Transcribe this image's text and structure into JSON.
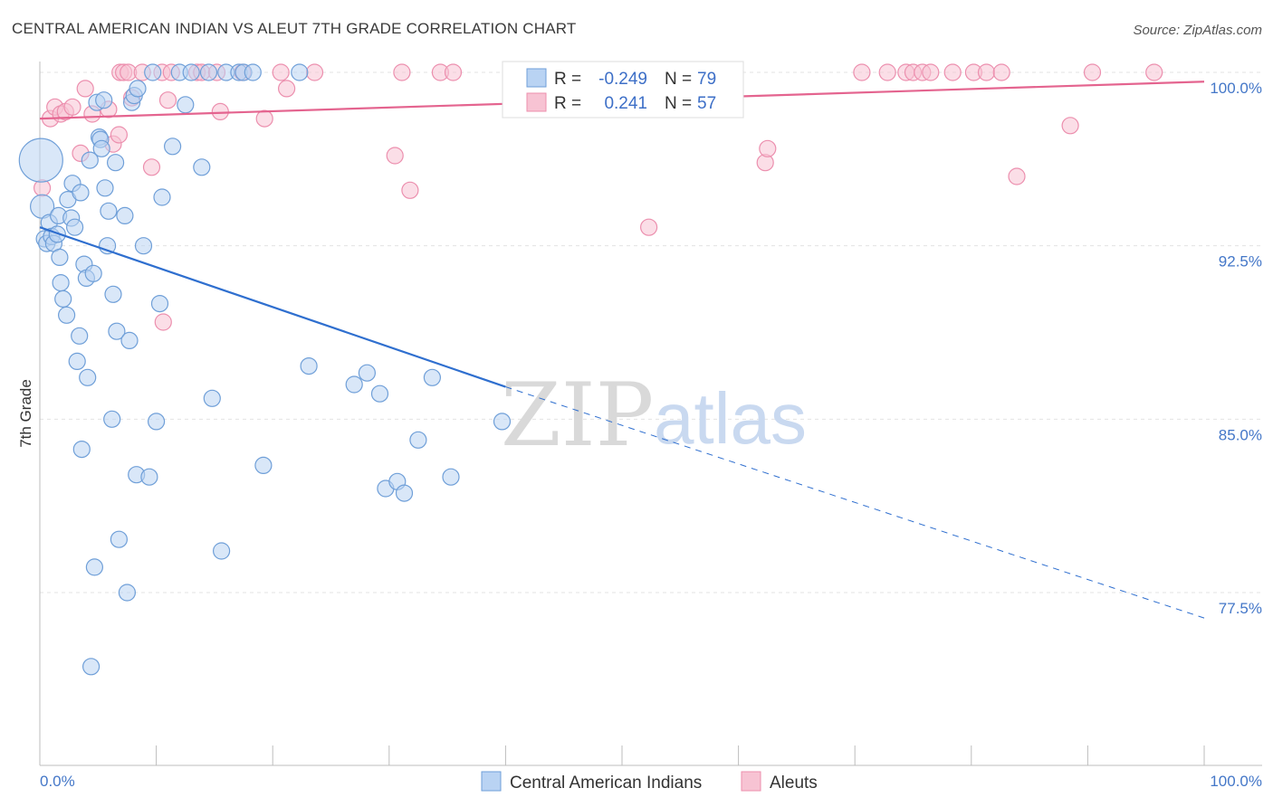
{
  "header": {
    "title": "CENTRAL AMERICAN INDIAN VS ALEUT 7TH GRADE CORRELATION CHART",
    "source": "Source: ZipAtlas.com"
  },
  "watermark": {
    "zip": "ZIP",
    "atlas": "atlas"
  },
  "colors": {
    "blue_fill": "#b9d3f3",
    "blue_stroke": "#6f9fd8",
    "blue_line": "#2f6fcf",
    "pink_fill": "#f7c3d3",
    "pink_stroke": "#ec8fae",
    "pink_line": "#e4648f",
    "grid": "#e3e3e3",
    "axis": "#bdbdbd"
  },
  "legend_box": {
    "rows": [
      {
        "r_label": "R =",
        "r_value": "-0.249",
        "n_label": "N =",
        "n_value": "79",
        "series": "blue"
      },
      {
        "r_label": "R =",
        "r_value": "0.241",
        "n_label": "N =",
        "n_value": "57",
        "series": "pink"
      }
    ]
  },
  "chart_data": {
    "type": "scatter",
    "title": "CENTRAL AMERICAN INDIAN VS ALEUT 7TH GRADE CORRELATION CHART",
    "xlabel": "",
    "ylabel": "7th Grade",
    "xlim": [
      0,
      100
    ],
    "ylim": [
      70.9,
      101.0
    ],
    "x_edge_labels": [
      "0.0%",
      "100.0%"
    ],
    "y_ticks": [
      {
        "value": 100.0,
        "label": "100.0%"
      },
      {
        "value": 92.5,
        "label": "92.5%"
      },
      {
        "value": 85.0,
        "label": "85.0%"
      },
      {
        "value": 77.5,
        "label": "77.5%"
      }
    ],
    "x_minor_ticks": [
      10,
      20,
      30,
      40,
      50,
      60,
      70,
      80,
      90,
      100
    ],
    "legend": [
      "Central American Indians",
      "Aleuts"
    ],
    "series": [
      {
        "name": "Central American Indians",
        "color": "blue",
        "r": -0.249,
        "n": 79,
        "trend": {
          "x0": 0,
          "y0": 93.3,
          "x_solid_end": 40,
          "y_solid_end": 86.4,
          "x1": 100,
          "y1": 76.4
        },
        "points": [
          [
            0.1,
            96.2,
            3
          ],
          [
            0.2,
            94.2,
            2
          ],
          [
            0.4,
            92.8,
            1
          ],
          [
            0.6,
            92.6,
            1
          ],
          [
            0.8,
            93.5,
            1
          ],
          [
            1.0,
            92.9,
            1
          ],
          [
            1.2,
            92.6,
            1
          ],
          [
            1.5,
            93.0,
            1
          ],
          [
            1.6,
            93.8,
            1
          ],
          [
            1.7,
            92.0,
            1
          ],
          [
            1.8,
            90.9,
            1
          ],
          [
            2.0,
            90.2,
            1
          ],
          [
            2.3,
            89.5,
            1
          ],
          [
            2.4,
            94.5,
            1
          ],
          [
            2.7,
            93.7,
            1
          ],
          [
            2.8,
            95.2,
            1
          ],
          [
            3.0,
            93.3,
            1
          ],
          [
            3.2,
            87.5,
            1
          ],
          [
            3.4,
            88.6,
            1
          ],
          [
            3.5,
            94.8,
            1
          ],
          [
            3.6,
            83.7,
            1
          ],
          [
            3.8,
            91.7,
            1
          ],
          [
            4.0,
            91.1,
            1
          ],
          [
            4.1,
            86.8,
            1
          ],
          [
            4.3,
            96.2,
            1
          ],
          [
            4.6,
            91.3,
            1
          ],
          [
            4.7,
            78.6,
            1
          ],
          [
            4.9,
            98.7,
            1
          ],
          [
            5.1,
            97.2,
            1
          ],
          [
            5.2,
            97.1,
            1
          ],
          [
            5.3,
            96.7,
            1
          ],
          [
            5.5,
            98.8,
            1
          ],
          [
            5.6,
            95.0,
            1
          ],
          [
            5.8,
            92.5,
            1
          ],
          [
            5.9,
            94.0,
            1
          ],
          [
            6.2,
            85.0,
            1
          ],
          [
            6.3,
            90.4,
            1
          ],
          [
            6.5,
            96.1,
            1
          ],
          [
            6.6,
            88.8,
            1
          ],
          [
            6.8,
            79.8,
            1
          ],
          [
            7.3,
            93.8,
            1
          ],
          [
            7.5,
            77.5,
            1
          ],
          [
            7.7,
            88.4,
            1
          ],
          [
            7.9,
            98.7,
            1
          ],
          [
            8.1,
            99.0,
            1
          ],
          [
            8.3,
            82.6,
            1
          ],
          [
            8.4,
            99.3,
            1
          ],
          [
            8.9,
            92.5,
            1
          ],
          [
            9.4,
            82.5,
            1
          ],
          [
            9.7,
            100.0,
            1
          ],
          [
            10.0,
            84.9,
            1
          ],
          [
            10.3,
            90.0,
            1
          ],
          [
            10.5,
            94.6,
            1
          ],
          [
            11.4,
            96.8,
            1
          ],
          [
            12.0,
            100.0,
            1
          ],
          [
            12.5,
            98.6,
            1
          ],
          [
            13.0,
            100.0,
            1
          ],
          [
            13.9,
            95.9,
            1
          ],
          [
            14.5,
            100.0,
            1
          ],
          [
            14.8,
            85.9,
            1
          ],
          [
            15.6,
            79.3,
            1
          ],
          [
            16.0,
            100.0,
            1
          ],
          [
            17.1,
            100.0,
            1
          ],
          [
            17.5,
            100.0,
            1
          ],
          [
            18.3,
            100.0,
            1
          ],
          [
            19.2,
            83.0,
            1
          ],
          [
            22.3,
            100.0,
            1
          ],
          [
            23.1,
            87.3,
            1
          ],
          [
            27.0,
            86.5,
            1
          ],
          [
            28.1,
            87.0,
            1
          ],
          [
            29.2,
            86.1,
            1
          ],
          [
            29.7,
            82.0,
            1
          ],
          [
            30.7,
            82.3,
            1
          ],
          [
            31.3,
            81.8,
            1
          ],
          [
            32.5,
            84.1,
            1
          ],
          [
            33.7,
            86.8,
            1
          ],
          [
            35.3,
            82.5,
            1
          ],
          [
            39.7,
            84.9,
            1
          ],
          [
            4.4,
            74.3,
            1
          ]
        ]
      },
      {
        "name": "Aleuts",
        "color": "pink",
        "r": 0.241,
        "n": 57,
        "trend": {
          "x0": 0,
          "y0": 98.0,
          "x1": 100,
          "y1": 99.6
        },
        "points": [
          [
            0.2,
            95.0,
            1
          ],
          [
            0.9,
            98.0,
            1
          ],
          [
            1.3,
            98.5,
            1
          ],
          [
            1.8,
            98.2,
            1
          ],
          [
            2.2,
            98.3,
            1
          ],
          [
            2.8,
            98.5,
            1
          ],
          [
            3.5,
            96.5,
            1
          ],
          [
            3.9,
            99.3,
            1
          ],
          [
            4.5,
            98.2,
            1
          ],
          [
            5.9,
            98.4,
            1
          ],
          [
            6.3,
            96.9,
            1
          ],
          [
            6.8,
            97.3,
            1
          ],
          [
            6.9,
            100.0,
            1
          ],
          [
            7.2,
            100.0,
            1
          ],
          [
            7.6,
            100.0,
            1
          ],
          [
            7.9,
            98.9,
            1
          ],
          [
            8.8,
            100.0,
            1
          ],
          [
            9.6,
            95.9,
            1
          ],
          [
            10.5,
            100.0,
            1
          ],
          [
            10.6,
            89.2,
            1
          ],
          [
            11.0,
            98.8,
            1
          ],
          [
            11.3,
            100.0,
            1
          ],
          [
            13.5,
            100.0,
            1
          ],
          [
            13.9,
            100.0,
            1
          ],
          [
            15.2,
            100.0,
            1
          ],
          [
            15.5,
            98.3,
            1
          ],
          [
            17.4,
            100.0,
            1
          ],
          [
            19.3,
            98.0,
            1
          ],
          [
            20.7,
            100.0,
            1
          ],
          [
            21.2,
            99.3,
            1
          ],
          [
            23.6,
            100.0,
            1
          ],
          [
            30.5,
            96.4,
            1
          ],
          [
            31.1,
            100.0,
            1
          ],
          [
            31.8,
            94.9,
            1
          ],
          [
            34.4,
            100.0,
            1
          ],
          [
            35.5,
            100.0,
            1
          ],
          [
            41.5,
            100.0,
            1
          ],
          [
            44.6,
            100.0,
            1
          ],
          [
            52.3,
            93.3,
            1
          ],
          [
            55.8,
            100.0,
            1
          ],
          [
            58.1,
            100.0,
            1
          ],
          [
            62.3,
            96.1,
            1
          ],
          [
            62.5,
            96.7,
            1
          ],
          [
            70.6,
            100.0,
            1
          ],
          [
            72.8,
            100.0,
            1
          ],
          [
            74.4,
            100.0,
            1
          ],
          [
            75.0,
            100.0,
            1
          ],
          [
            75.8,
            100.0,
            1
          ],
          [
            76.5,
            100.0,
            1
          ],
          [
            78.4,
            100.0,
            1
          ],
          [
            80.2,
            100.0,
            1
          ],
          [
            81.3,
            100.0,
            1
          ],
          [
            82.6,
            100.0,
            1
          ],
          [
            83.9,
            95.5,
            1
          ],
          [
            88.5,
            97.7,
            1
          ],
          [
            90.4,
            100.0,
            1
          ],
          [
            95.7,
            100.0,
            1
          ]
        ]
      }
    ]
  },
  "bottom_legend": {
    "items": [
      {
        "label": "Central American Indians",
        "series": "blue"
      },
      {
        "label": "Aleuts",
        "series": "pink"
      }
    ]
  }
}
